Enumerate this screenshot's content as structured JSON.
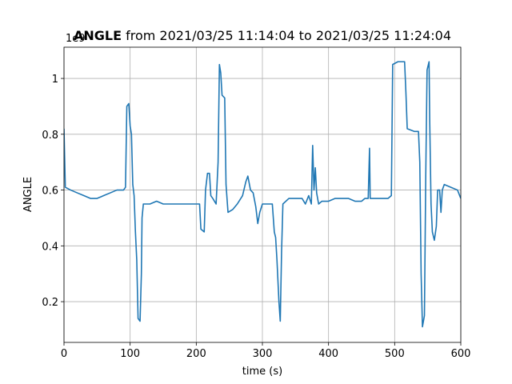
{
  "chart_data": {
    "type": "line",
    "title_bold": "ANGLE",
    "title": "from 2021/03/25 11:14:04 to 2021/03/25 11:24:04",
    "xlabel": "time (s)",
    "ylabel": "ANGLE",
    "offset_label": "1e9",
    "xlim": [
      0,
      600
    ],
    "xticks": [
      0,
      100,
      200,
      300,
      400,
      500,
      600
    ],
    "ylim": [
      0.054,
      1.112
    ],
    "yticks": [
      0.2,
      0.4,
      0.6,
      0.8,
      1.0
    ],
    "grid": true,
    "series": [
      {
        "color": "#1f77b4",
        "x": [
          0,
          2,
          10,
          20,
          30,
          40,
          50,
          60,
          70,
          80,
          90,
          93,
          95,
          98,
          100,
          102,
          104,
          106,
          108,
          110,
          112,
          115,
          117,
          118,
          120,
          130,
          140,
          150,
          160,
          170,
          180,
          190,
          200,
          205,
          207,
          212,
          214,
          217,
          220,
          222,
          225,
          230,
          233,
          235,
          237,
          239,
          243,
          245,
          248,
          255,
          262,
          270,
          275,
          278,
          282,
          286,
          290,
          293,
          296,
          300,
          310,
          315,
          318,
          320,
          322,
          325,
          327,
          329,
          331,
          340,
          350,
          360,
          365,
          370,
          374,
          376,
          378,
          380,
          382,
          385,
          390,
          400,
          410,
          420,
          430,
          440,
          450,
          455,
          460,
          462,
          463,
          470,
          480,
          490,
          495,
          497,
          505,
          515,
          517,
          519,
          530,
          536,
          538,
          540,
          542,
          545,
          547,
          549,
          552,
          553,
          555,
          557,
          560,
          563,
          565,
          568,
          570,
          572,
          575,
          585,
          595,
          600
        ],
        "values": [
          0.82,
          0.61,
          0.6,
          0.59,
          0.58,
          0.57,
          0.57,
          0.58,
          0.59,
          0.6,
          0.6,
          0.61,
          0.9,
          0.91,
          0.83,
          0.8,
          0.62,
          0.58,
          0.45,
          0.35,
          0.14,
          0.13,
          0.3,
          0.5,
          0.55,
          0.55,
          0.56,
          0.55,
          0.55,
          0.55,
          0.55,
          0.55,
          0.55,
          0.55,
          0.46,
          0.45,
          0.6,
          0.66,
          0.66,
          0.58,
          0.57,
          0.55,
          0.7,
          1.05,
          1.02,
          0.94,
          0.93,
          0.62,
          0.52,
          0.53,
          0.55,
          0.58,
          0.63,
          0.65,
          0.6,
          0.59,
          0.54,
          0.48,
          0.52,
          0.55,
          0.55,
          0.55,
          0.45,
          0.43,
          0.35,
          0.2,
          0.13,
          0.38,
          0.55,
          0.57,
          0.57,
          0.57,
          0.55,
          0.58,
          0.55,
          0.76,
          0.6,
          0.68,
          0.59,
          0.55,
          0.56,
          0.56,
          0.57,
          0.57,
          0.57,
          0.56,
          0.56,
          0.57,
          0.57,
          0.75,
          0.57,
          0.57,
          0.57,
          0.57,
          0.58,
          1.05,
          1.06,
          1.06,
          0.95,
          0.82,
          0.81,
          0.81,
          0.7,
          0.3,
          0.11,
          0.15,
          0.65,
          1.03,
          1.06,
          0.85,
          0.55,
          0.45,
          0.42,
          0.47,
          0.6,
          0.6,
          0.52,
          0.6,
          0.62,
          0.61,
          0.6,
          0.57
        ]
      }
    ]
  }
}
